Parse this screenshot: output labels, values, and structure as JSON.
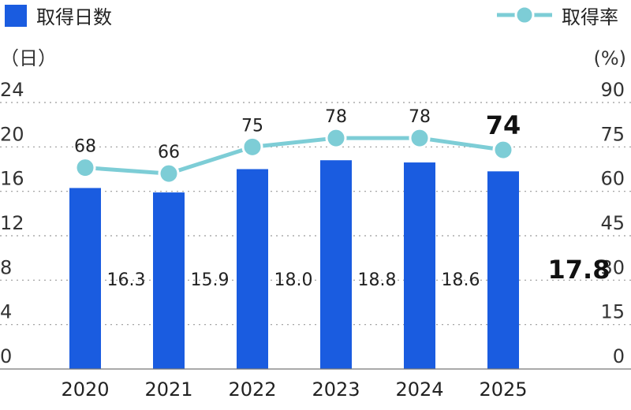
{
  "chart_data": {
    "type": "bar",
    "categories": [
      "2020",
      "2021",
      "2022",
      "2023",
      "2024",
      "2025"
    ],
    "series": [
      {
        "name": "取得日数",
        "kind": "bar",
        "axis": "left",
        "values": [
          16.3,
          15.9,
          18.0,
          18.8,
          18.6,
          17.8
        ],
        "labels": [
          "16.3",
          "15.9",
          "18.0",
          "18.8",
          "18.6",
          "17.8"
        ],
        "color": "#1a5ce0"
      },
      {
        "name": "取得率",
        "kind": "line",
        "axis": "right",
        "values": [
          68,
          66,
          75,
          78,
          78,
          74
        ],
        "labels": [
          "68",
          "66",
          "75",
          "78",
          "78",
          "74"
        ],
        "color": "#7dcdd6"
      }
    ],
    "highlight_index": 5,
    "y_left": {
      "unit": "（日）",
      "ticks": [
        "24",
        "20",
        "16",
        "12",
        "8",
        "4",
        "0"
      ],
      "range": [
        0,
        24
      ]
    },
    "y_right": {
      "unit": "(%)",
      "ticks": [
        "90",
        "75",
        "60",
        "45",
        "30",
        "15",
        "0"
      ],
      "range": [
        0,
        90
      ]
    },
    "legend_placement": "top",
    "grid": "dotted horizontal"
  }
}
